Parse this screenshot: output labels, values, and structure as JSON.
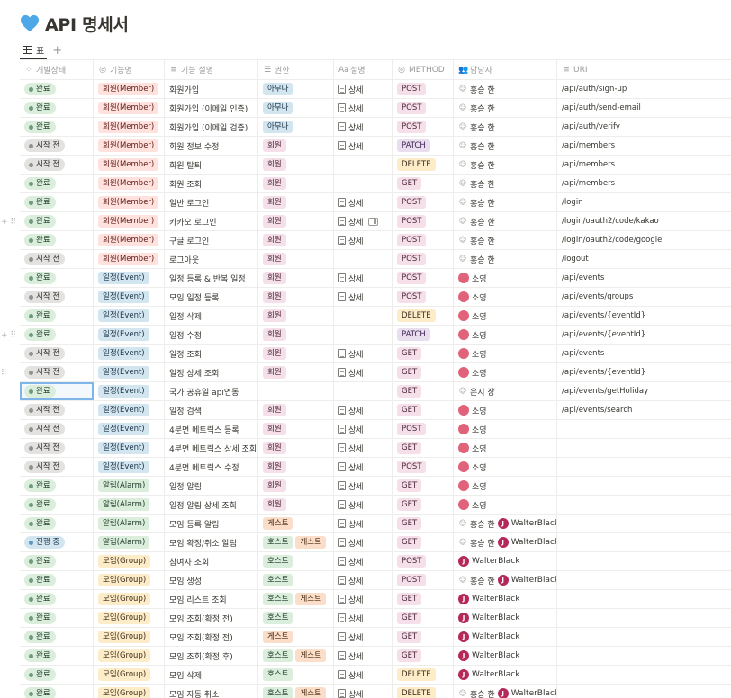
{
  "title": "API 명세서",
  "view_tab": "표",
  "colors": {
    "accent_heart": "#4ea8e8"
  },
  "columns": [
    "개발상태",
    "기능명",
    "기능 설명",
    "권한",
    "설명",
    "METHOD",
    "담당자",
    "URI"
  ],
  "column_icons": [
    "loader-icon",
    "status-circle-icon",
    "text-lines-icon",
    "list-icon",
    "text-aa-icon",
    "status-circle-icon",
    "people-icon",
    "text-lines-icon"
  ],
  "rows": [
    {
      "status": "완료",
      "feature": "회원(Member)",
      "desc": "회원가입",
      "perms": [
        "아무나"
      ],
      "doc": "상세",
      "method": "POST",
      "people": [
        {
          "name": "홍승 한",
          "type": "none"
        }
      ],
      "uri": "/api/auth/sign-up"
    },
    {
      "status": "완료",
      "feature": "회원(Member)",
      "desc": "회원가입 (이메일 인증)",
      "perms": [
        "아무나"
      ],
      "doc": "상세",
      "method": "POST",
      "people": [
        {
          "name": "홍승 한",
          "type": "none"
        }
      ],
      "uri": "/api/auth/send-email"
    },
    {
      "status": "완료",
      "feature": "회원(Member)",
      "desc": "회원가입 (이메일 검증)",
      "perms": [
        "아무나"
      ],
      "doc": "상세",
      "method": "POST",
      "people": [
        {
          "name": "홍승 한",
          "type": "none"
        }
      ],
      "uri": "/api/auth/verify"
    },
    {
      "status": "시작 전",
      "feature": "회원(Member)",
      "desc": "회원 정보 수정",
      "perms": [
        "회원"
      ],
      "doc": "상세",
      "method": "PATCH",
      "people": [
        {
          "name": "홍승 한",
          "type": "none"
        }
      ],
      "uri": "/api/members"
    },
    {
      "status": "시작 전",
      "feature": "회원(Member)",
      "desc": "회원 탈퇴",
      "perms": [
        "회원"
      ],
      "doc": "",
      "method": "DELETE",
      "people": [
        {
          "name": "홍승 한",
          "type": "none"
        }
      ],
      "uri": "/api/members"
    },
    {
      "status": "완료",
      "feature": "회원(Member)",
      "desc": "회원 조회",
      "perms": [
        "회원"
      ],
      "doc": "",
      "method": "GET",
      "people": [
        {
          "name": "홍승 한",
          "type": "none"
        }
      ],
      "uri": "/api/members"
    },
    {
      "status": "완료",
      "feature": "회원(Member)",
      "desc": "일반 로그인",
      "perms": [
        "회원"
      ],
      "doc": "상세",
      "method": "POST",
      "people": [
        {
          "name": "홍승 한",
          "type": "none"
        }
      ],
      "uri": "/login"
    },
    {
      "status": "완료",
      "feature": "회원(Member)",
      "desc": "카카오 로그인",
      "perms": [
        "회원"
      ],
      "doc": "상세",
      "method": "POST",
      "people": [
        {
          "name": "홍승 한",
          "type": "none"
        }
      ],
      "uri": "/login/oauth2/code/kakao",
      "side": "+ ⠿",
      "peek": true
    },
    {
      "status": "완료",
      "feature": "회원(Member)",
      "desc": "구글 로그인",
      "perms": [
        "회원"
      ],
      "doc": "상세",
      "method": "POST",
      "people": [
        {
          "name": "홍승 한",
          "type": "none"
        }
      ],
      "uri": "/login/oauth2/code/google"
    },
    {
      "status": "시작 전",
      "feature": "회원(Member)",
      "desc": "로그아웃",
      "perms": [
        "회원"
      ],
      "doc": "",
      "method": "POST",
      "people": [
        {
          "name": "홍승 한",
          "type": "none"
        }
      ],
      "uri": "/logout"
    },
    {
      "status": "완료",
      "feature": "일정(Event)",
      "desc": "일정 등록 & 반복 일정",
      "perms": [
        "회원"
      ],
      "doc": "상세",
      "method": "POST",
      "people": [
        {
          "name": "소영",
          "type": "pink"
        }
      ],
      "uri": "/api/events"
    },
    {
      "status": "시작 전",
      "feature": "일정(Event)",
      "desc": "모임 일정 등록",
      "perms": [
        "회원"
      ],
      "doc": "상세",
      "method": "POST",
      "people": [
        {
          "name": "소영",
          "type": "pink"
        }
      ],
      "uri": "/api/events/groups"
    },
    {
      "status": "완료",
      "feature": "일정(Event)",
      "desc": "일정 삭제",
      "perms": [
        "회원"
      ],
      "doc": "",
      "method": "DELETE",
      "people": [
        {
          "name": "소영",
          "type": "pink"
        }
      ],
      "uri": "/api/events/{eventId}"
    },
    {
      "status": "완료",
      "feature": "일정(Event)",
      "desc": "일정 수정",
      "perms": [
        "회원"
      ],
      "doc": "",
      "method": "PATCH",
      "people": [
        {
          "name": "소영",
          "type": "pink"
        }
      ],
      "uri": "/api/events/{eventId}",
      "side": "+ ⠿"
    },
    {
      "status": "시작 전",
      "feature": "일정(Event)",
      "desc": "일정 조회",
      "perms": [
        "회원"
      ],
      "doc": "상세",
      "method": "GET",
      "people": [
        {
          "name": "소영",
          "type": "pink"
        }
      ],
      "uri": "/api/events"
    },
    {
      "status": "시작 전",
      "feature": "일정(Event)",
      "desc": "일정 상세 조회",
      "perms": [
        "회원"
      ],
      "doc": "상세",
      "method": "GET",
      "people": [
        {
          "name": "소영",
          "type": "pink"
        }
      ],
      "uri": "/api/events/{eventId}",
      "side": "⠿"
    },
    {
      "status": "완료",
      "feature": "일정(Event)",
      "desc": "국가 공휴일 api연동",
      "perms": [],
      "doc": "",
      "method": "GET",
      "people": [
        {
          "name": "은지 장",
          "type": "none"
        }
      ],
      "uri": "/api/events/getHoliday",
      "selected": true
    },
    {
      "status": "시작 전",
      "feature": "일정(Event)",
      "desc": "일정 검색",
      "perms": [
        "회원"
      ],
      "doc": "상세",
      "method": "GET",
      "people": [
        {
          "name": "소영",
          "type": "pink"
        }
      ],
      "uri": "/api/events/search"
    },
    {
      "status": "시작 전",
      "feature": "일정(Event)",
      "desc": "4분면 메트릭스 등록",
      "perms": [
        "회원"
      ],
      "doc": "상세",
      "method": "POST",
      "people": [
        {
          "name": "소영",
          "type": "pink"
        }
      ],
      "uri": ""
    },
    {
      "status": "시작 전",
      "feature": "일정(Event)",
      "desc": "4분면 메트릭스 상세 조회",
      "perms": [
        "회원"
      ],
      "doc": "상세",
      "method": "GET",
      "people": [
        {
          "name": "소영",
          "type": "pink"
        }
      ],
      "uri": ""
    },
    {
      "status": "시작 전",
      "feature": "일정(Event)",
      "desc": "4분면 메트릭스 수정",
      "perms": [
        "회원"
      ],
      "doc": "상세",
      "method": "POST",
      "people": [
        {
          "name": "소영",
          "type": "pink"
        }
      ],
      "uri": ""
    },
    {
      "status": "완료",
      "feature": "알림(Alarm)",
      "desc": "일정 알림",
      "perms": [
        "회원"
      ],
      "doc": "상세",
      "method": "GET",
      "people": [
        {
          "name": "소영",
          "type": "pink"
        }
      ],
      "uri": ""
    },
    {
      "status": "완료",
      "feature": "알림(Alarm)",
      "desc": "일정 알림 상세 조회",
      "perms": [
        "회원"
      ],
      "doc": "상세",
      "method": "GET",
      "people": [
        {
          "name": "소영",
          "type": "pink"
        }
      ],
      "uri": ""
    },
    {
      "status": "완료",
      "feature": "알림(Alarm)",
      "desc": "모임 등록 알림",
      "perms": [
        "게스트"
      ],
      "doc": "상세",
      "method": "GET",
      "people": [
        {
          "name": "홍승 한",
          "type": "none"
        },
        {
          "name": "WalterBlack",
          "type": "j"
        }
      ],
      "uri": ""
    },
    {
      "status": "진행 중",
      "feature": "알림(Alarm)",
      "desc": "모임 확정/취소 알림",
      "perms": [
        "호스트",
        "게스트"
      ],
      "doc": "상세",
      "method": "GET",
      "people": [
        {
          "name": "홍승 한",
          "type": "none"
        },
        {
          "name": "WalterBlack",
          "type": "j"
        }
      ],
      "uri": ""
    },
    {
      "status": "완료",
      "feature": "모임(Group)",
      "desc": "참여자 조회",
      "perms": [
        "호스트"
      ],
      "doc": "상세",
      "method": "POST",
      "people": [
        {
          "name": "WalterBlack",
          "type": "j"
        }
      ],
      "uri": ""
    },
    {
      "status": "완료",
      "feature": "모임(Group)",
      "desc": "모임 생성",
      "perms": [
        "호스트"
      ],
      "doc": "상세",
      "method": "POST",
      "people": [
        {
          "name": "홍승 한",
          "type": "none"
        },
        {
          "name": "WalterBlack",
          "type": "j"
        }
      ],
      "uri": ""
    },
    {
      "status": "완료",
      "feature": "모임(Group)",
      "desc": "모임 리스트 조회",
      "perms": [
        "호스트",
        "게스트"
      ],
      "doc": "상세",
      "method": "GET",
      "people": [
        {
          "name": "WalterBlack",
          "type": "j"
        }
      ],
      "uri": ""
    },
    {
      "status": "완료",
      "feature": "모임(Group)",
      "desc": "모임 조회(확정 전)",
      "perms": [
        "호스트"
      ],
      "doc": "상세",
      "method": "GET",
      "people": [
        {
          "name": "WalterBlack",
          "type": "j"
        }
      ],
      "uri": ""
    },
    {
      "status": "완료",
      "feature": "모임(Group)",
      "desc": "모임 조회(확정 전)",
      "perms": [
        "게스트"
      ],
      "doc": "상세",
      "method": "GET",
      "people": [
        {
          "name": "WalterBlack",
          "type": "j"
        }
      ],
      "uri": ""
    },
    {
      "status": "완료",
      "feature": "모임(Group)",
      "desc": "모임 조회(확정 후)",
      "perms": [
        "호스트",
        "게스트"
      ],
      "doc": "상세",
      "method": "GET",
      "people": [
        {
          "name": "WalterBlack",
          "type": "j"
        }
      ],
      "uri": ""
    },
    {
      "status": "완료",
      "feature": "모임(Group)",
      "desc": "모임 삭제",
      "perms": [
        "호스트"
      ],
      "doc": "상세",
      "method": "DELETE",
      "people": [
        {
          "name": "WalterBlack",
          "type": "j"
        }
      ],
      "uri": ""
    },
    {
      "status": "완료",
      "feature": "모임(Group)",
      "desc": "모임 자동 취소",
      "perms": [
        "호스트",
        "게스트"
      ],
      "doc": "상세",
      "method": "DELETE",
      "people": [
        {
          "name": "홍승 한",
          "type": "none"
        },
        {
          "name": "WalterBlack",
          "type": "j"
        }
      ],
      "uri": ""
    }
  ],
  "status_styles": {
    "완료": {
      "bg": "#dbeddb",
      "fg": "#1c3829",
      "dot": "#6c9b7d"
    },
    "시작 전": {
      "bg": "#e3e2e0",
      "fg": "#32302c",
      "dot": "#91918e"
    },
    "진행 중": {
      "bg": "#d3e5ef",
      "fg": "#183347",
      "dot": "#5b97bd"
    }
  },
  "feature_styles": {
    "회원(Member)": {
      "bg": "#ffe2dd",
      "fg": "#5d1715"
    },
    "일정(Event)": {
      "bg": "#d3e5ef",
      "fg": "#183347"
    },
    "알림(Alarm)": {
      "bg": "#dbeddb",
      "fg": "#1c3829"
    },
    "모임(Group)": {
      "bg": "#fdecc8",
      "fg": "#402c1b"
    }
  },
  "perm_styles": {
    "아무나": {
      "bg": "#d3e5ef",
      "fg": "#183347"
    },
    "회원": {
      "bg": "#f5e0e9",
      "fg": "#4c2337"
    },
    "게스트": {
      "bg": "#fadec9",
      "fg": "#49290e"
    },
    "호스트": {
      "bg": "#dbeddb",
      "fg": "#1c3829"
    }
  },
  "method_styles": {
    "POST": {
      "bg": "#f5e0e9",
      "fg": "#4c2337"
    },
    "GET": {
      "bg": "#f5e0e9",
      "fg": "#4c2337"
    },
    "PATCH": {
      "bg": "#e8deee",
      "fg": "#412454"
    },
    "DELETE": {
      "bg": "#fdecc8",
      "fg": "#402c1b"
    }
  }
}
